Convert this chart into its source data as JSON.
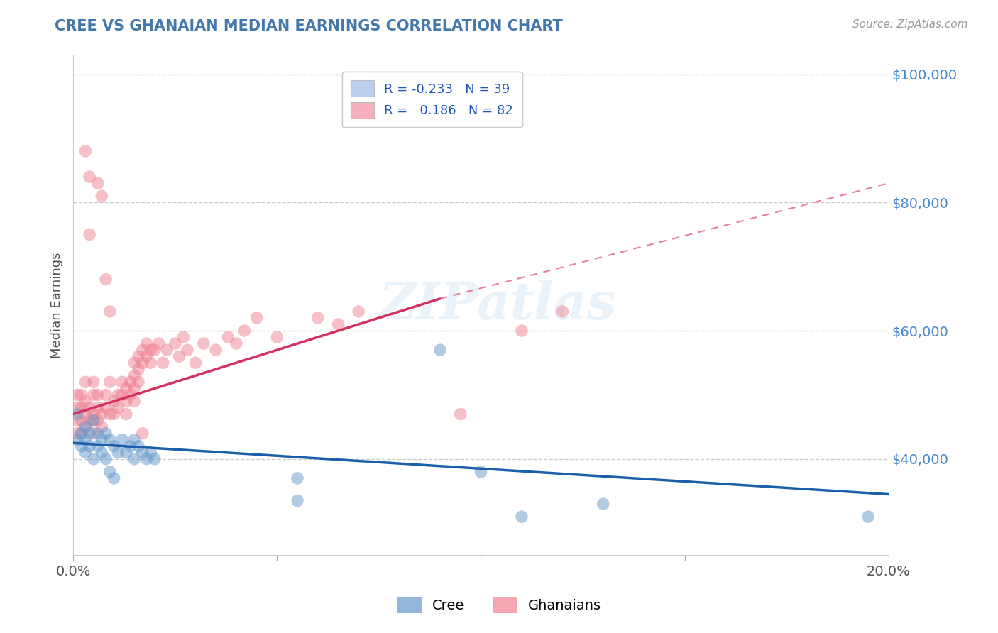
{
  "title": "CREE VS GHANAIAN MEDIAN EARNINGS CORRELATION CHART",
  "source": "Source: ZipAtlas.com",
  "ylabel": "Median Earnings",
  "x_min": 0.0,
  "x_max": 0.2,
  "y_min": 25000,
  "y_max": 103000,
  "yticks": [
    40000,
    60000,
    80000,
    100000
  ],
  "ytick_labels": [
    "$40,000",
    "$60,000",
    "$80,000",
    "$100,000"
  ],
  "xtick_positions": [
    0.0,
    0.05,
    0.1,
    0.15,
    0.2
  ],
  "xtick_labels": [
    "0.0%",
    "",
    "",
    "",
    "20.0%"
  ],
  "legend_entries": [
    {
      "label": "R = -0.233   N = 39",
      "color": "#b8d0ec"
    },
    {
      "label": "R =   0.186   N = 82",
      "color": "#f4b0bc"
    }
  ],
  "bottom_legend": [
    {
      "label": "Cree",
      "color": "#6699cc"
    },
    {
      "label": "Ghanaians",
      "color": "#f08090"
    }
  ],
  "cree_color": "#6699cc",
  "ghanaian_color": "#f08090",
  "trend_cree_color": "#1a5fa8",
  "trend_ghanaian_color": "#d43060",
  "title_color": "#4477aa",
  "source_color": "#999999",
  "ylabel_color": "#555555",
  "ytick_color": "#4488cc",
  "background_color": "#ffffff",
  "grid_color": "#cccccc",
  "watermark": "ZIPatlas",
  "cree_trend_x0": 0.0,
  "cree_trend_y0": 42500,
  "cree_trend_x1": 0.2,
  "cree_trend_y1": 34500,
  "ghanaian_trend_x0": 0.0,
  "ghanaian_trend_y0": 47000,
  "ghanaian_trend_x1": 0.09,
  "ghanaian_trend_y1": 65000,
  "ghanaian_trend_ext_x1": 0.2,
  "ghanaian_trend_ext_y1": 83000,
  "cree_points": [
    [
      0.001,
      47000
    ],
    [
      0.001,
      43000
    ],
    [
      0.002,
      44000
    ],
    [
      0.002,
      42000
    ],
    [
      0.003,
      45000
    ],
    [
      0.003,
      43000
    ],
    [
      0.003,
      41000
    ],
    [
      0.004,
      44000
    ],
    [
      0.004,
      42000
    ],
    [
      0.005,
      46000
    ],
    [
      0.005,
      40000
    ],
    [
      0.006,
      44000
    ],
    [
      0.006,
      42000
    ],
    [
      0.007,
      43000
    ],
    [
      0.007,
      41000
    ],
    [
      0.008,
      44000
    ],
    [
      0.008,
      40000
    ],
    [
      0.009,
      43000
    ],
    [
      0.009,
      38000
    ],
    [
      0.01,
      42000
    ],
    [
      0.01,
      37000
    ],
    [
      0.011,
      41000
    ],
    [
      0.012,
      43000
    ],
    [
      0.013,
      41000
    ],
    [
      0.014,
      42000
    ],
    [
      0.015,
      43000
    ],
    [
      0.015,
      40000
    ],
    [
      0.016,
      42000
    ],
    [
      0.017,
      41000
    ],
    [
      0.018,
      40000
    ],
    [
      0.019,
      41000
    ],
    [
      0.02,
      40000
    ],
    [
      0.055,
      37000
    ],
    [
      0.055,
      33500
    ],
    [
      0.09,
      57000
    ],
    [
      0.1,
      38000
    ],
    [
      0.11,
      31000
    ],
    [
      0.13,
      33000
    ],
    [
      0.195,
      31000
    ]
  ],
  "ghanaian_points": [
    [
      0.001,
      48000
    ],
    [
      0.001,
      46000
    ],
    [
      0.001,
      44000
    ],
    [
      0.001,
      50000
    ],
    [
      0.002,
      46000
    ],
    [
      0.002,
      48000
    ],
    [
      0.002,
      44000
    ],
    [
      0.002,
      50000
    ],
    [
      0.003,
      88000
    ],
    [
      0.003,
      47000
    ],
    [
      0.003,
      45000
    ],
    [
      0.003,
      49000
    ],
    [
      0.003,
      52000
    ],
    [
      0.004,
      46000
    ],
    [
      0.004,
      75000
    ],
    [
      0.004,
      48000
    ],
    [
      0.004,
      84000
    ],
    [
      0.005,
      47000
    ],
    [
      0.005,
      46000
    ],
    [
      0.005,
      50000
    ],
    [
      0.005,
      44000
    ],
    [
      0.005,
      52000
    ],
    [
      0.006,
      48000
    ],
    [
      0.006,
      46000
    ],
    [
      0.006,
      83000
    ],
    [
      0.006,
      50000
    ],
    [
      0.007,
      47000
    ],
    [
      0.007,
      81000
    ],
    [
      0.007,
      45000
    ],
    [
      0.008,
      68000
    ],
    [
      0.008,
      48000
    ],
    [
      0.008,
      50000
    ],
    [
      0.009,
      47000
    ],
    [
      0.009,
      52000
    ],
    [
      0.009,
      63000
    ],
    [
      0.01,
      49000
    ],
    [
      0.01,
      47000
    ],
    [
      0.011,
      50000
    ],
    [
      0.011,
      48000
    ],
    [
      0.012,
      52000
    ],
    [
      0.012,
      50000
    ],
    [
      0.013,
      51000
    ],
    [
      0.013,
      49000
    ],
    [
      0.013,
      47000
    ],
    [
      0.014,
      52000
    ],
    [
      0.014,
      50000
    ],
    [
      0.015,
      55000
    ],
    [
      0.015,
      53000
    ],
    [
      0.015,
      51000
    ],
    [
      0.015,
      49000
    ],
    [
      0.016,
      56000
    ],
    [
      0.016,
      54000
    ],
    [
      0.016,
      52000
    ],
    [
      0.017,
      57000
    ],
    [
      0.017,
      55000
    ],
    [
      0.017,
      44000
    ],
    [
      0.018,
      58000
    ],
    [
      0.018,
      56000
    ],
    [
      0.019,
      57000
    ],
    [
      0.019,
      55000
    ],
    [
      0.02,
      57000
    ],
    [
      0.021,
      58000
    ],
    [
      0.022,
      55000
    ],
    [
      0.023,
      57000
    ],
    [
      0.025,
      58000
    ],
    [
      0.026,
      56000
    ],
    [
      0.027,
      59000
    ],
    [
      0.028,
      57000
    ],
    [
      0.03,
      55000
    ],
    [
      0.032,
      58000
    ],
    [
      0.035,
      57000
    ],
    [
      0.038,
      59000
    ],
    [
      0.04,
      58000
    ],
    [
      0.042,
      60000
    ],
    [
      0.045,
      62000
    ],
    [
      0.05,
      59000
    ],
    [
      0.06,
      62000
    ],
    [
      0.065,
      61000
    ],
    [
      0.07,
      63000
    ],
    [
      0.095,
      47000
    ],
    [
      0.11,
      60000
    ],
    [
      0.12,
      63000
    ]
  ]
}
